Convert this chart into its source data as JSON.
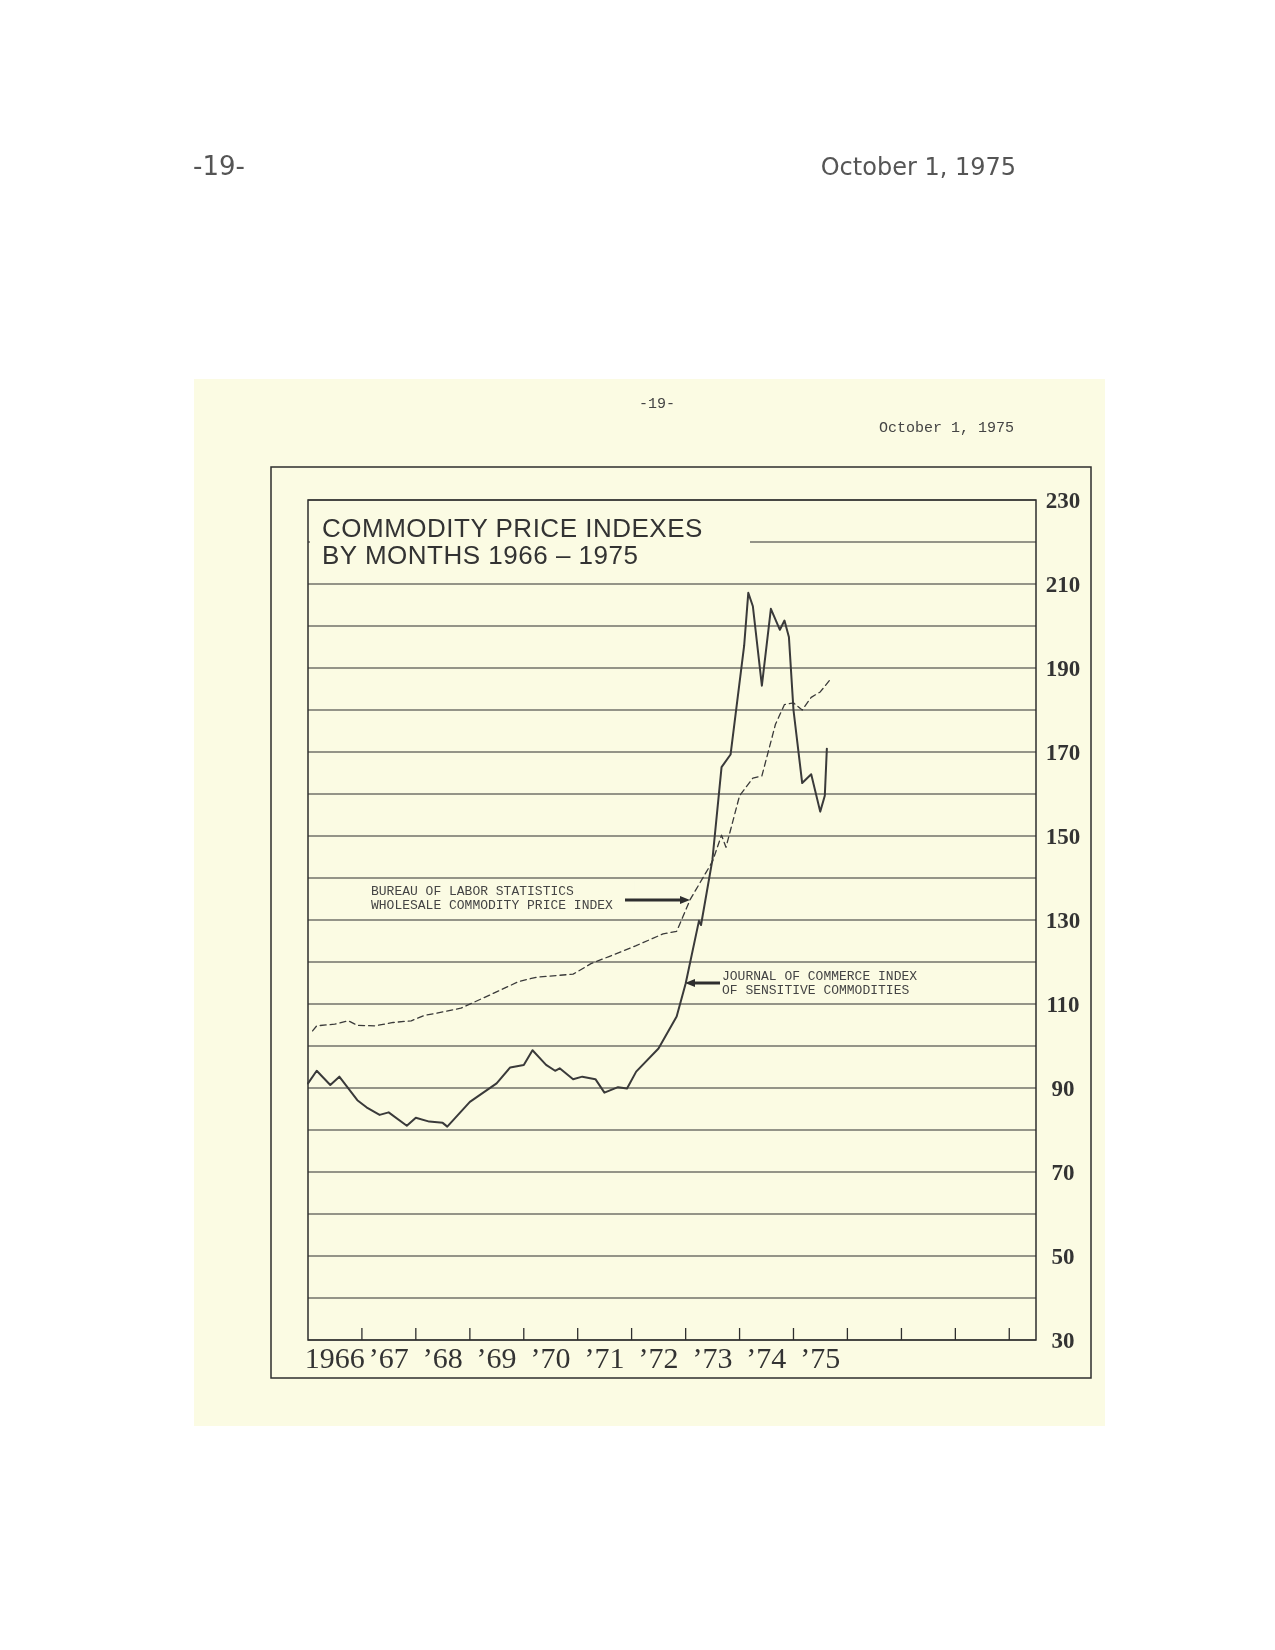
{
  "chart_data": {
    "type": "line",
    "title": "COMMODITY PRICE INDEXES\nBY MONTHS 1966 – 1975",
    "annotations": [
      "-19-",
      "October 1, 1975",
      "-19-",
      "October 1, 1975"
    ],
    "xlim": [
      "1966-01",
      "1979-07"
    ],
    "xticks": [
      {
        "value": "1966-07",
        "label": "1966"
      },
      {
        "value": "1967-07",
        "label": "’67"
      },
      {
        "value": "1968-07",
        "label": "’68"
      },
      {
        "value": "1969-07",
        "label": "’69"
      },
      {
        "value": "1970-07",
        "label": "’70"
      },
      {
        "value": "1971-07",
        "label": "’71"
      },
      {
        "value": "1972-07",
        "label": "’72"
      },
      {
        "value": "1973-07",
        "label": "’73"
      },
      {
        "value": "1974-07",
        "label": "’74"
      },
      {
        "value": "1975-07",
        "label": "’75"
      },
      {
        "value": "1967",
        "label": null
      },
      {
        "value": "1968",
        "label": null
      },
      {
        "value": "1969",
        "label": null
      },
      {
        "value": "1970",
        "label": null
      },
      {
        "value": "1971",
        "label": null
      },
      {
        "value": "1972",
        "label": null
      },
      {
        "value": "1973",
        "label": null
      },
      {
        "value": "1974",
        "label": null
      },
      {
        "value": "1975",
        "label": null
      },
      {
        "value": "1976",
        "label": null
      },
      {
        "value": "1977",
        "label": null
      },
      {
        "value": "1978",
        "label": null
      },
      {
        "value": "1979",
        "label": null
      }
    ],
    "ylim": [
      30,
      230
    ],
    "yticks": [
      30,
      {
        "value": 40,
        "label": null
      },
      50,
      {
        "value": 60,
        "label": null
      },
      70,
      {
        "value": 80,
        "label": null
      },
      90,
      {
        "value": 100,
        "label": null
      },
      110,
      {
        "value": 120,
        "label": null
      },
      130,
      {
        "value": 140,
        "label": null
      },
      150,
      {
        "value": 160,
        "label": null
      },
      170,
      {
        "value": 180,
        "label": null
      },
      190,
      {
        "value": 200,
        "label": null
      },
      210,
      {
        "value": 220,
        "label": null
      },
      230
    ],
    "grid": "y",
    "series": [
      {
        "name": "BUREAU OF LABOR STATISTICS\nWHOLESALE COMMODITY PRICE INDEX",
        "color": "#3a3a3a",
        "line_style": "dashed",
        "x": [
          "1966-02",
          "1966-03",
          "1966-07",
          "1966-10",
          "1966-12",
          "1967-04",
          "1967-08",
          "1967-12",
          "1968-03",
          "1968-07",
          "1968-11",
          "1969-06",
          "1969-12",
          "1970-04",
          "1970-12",
          "1971-04",
          "1971-08",
          "1972-02",
          "1972-08",
          "1972-11",
          "1973-02",
          "1973-07",
          "1973-09",
          "1973-10",
          "1974-01",
          "1974-04",
          "1974-06",
          "1974-09",
          "1974-11",
          "1975-01",
          "1975-03",
          "1975-05",
          "1975-07",
          "1975-09"
        ],
        "values": [
          103.6,
          104.8,
          105.2,
          106.0,
          104.9,
          104.8,
          105.6,
          106.0,
          107.3,
          108.1,
          109.0,
          112.4,
          115.4,
          116.4,
          117.1,
          119.6,
          121.3,
          123.9,
          126.7,
          127.3,
          134.9,
          143.9,
          150.2,
          147.3,
          159.6,
          163.8,
          164.3,
          176.6,
          181.3,
          181.7,
          180.0,
          183.0,
          184.3,
          187.0
        ]
      },
      {
        "name": "JOURNAL OF COMMERCE INDEX\nOF SENSITIVE COMMODITIES",
        "color": "#3a3a3a",
        "line_style": "solid",
        "x": [
          "1966-01",
          "1966-03",
          "1966-06",
          "1966-08",
          "1966-12",
          "1967-02",
          "1967-05",
          "1967-07",
          "1967-11",
          "1968-01",
          "1968-04",
          "1968-07",
          "1968-08",
          "1969-01",
          "1969-07",
          "1969-10",
          "1970-01",
          "1970-03",
          "1970-06",
          "1970-08",
          "1970-09",
          "1970-12",
          "1971-02",
          "1971-05",
          "1971-07",
          "1971-10",
          "1971-12",
          "1972-02",
          "1972-07",
          "1972-11",
          "1973-01",
          "1973-04",
          "1973-04-15",
          "1973-07",
          "1973-09",
          "1973-11",
          "1974-02",
          "1974-03",
          "1974-04",
          "1974-06",
          "1974-08",
          "1974-10",
          "1974-11",
          "1974-12",
          "1975-01",
          "1975-03",
          "1975-05",
          "1975-07",
          "1975-08",
          "1975-08-15"
        ],
        "values": [
          91.1,
          94.1,
          90.7,
          92.7,
          87.1,
          85.4,
          83.6,
          84.2,
          81.0,
          82.9,
          82.0,
          81.7,
          80.8,
          86.7,
          91.1,
          94.9,
          95.5,
          99.0,
          95.5,
          94.1,
          94.7,
          92.1,
          92.7,
          92.1,
          88.9,
          90.2,
          89.9,
          93.9,
          99.4,
          107.0,
          114.9,
          129.8,
          128.8,
          144.3,
          166.4,
          169.4,
          195.3,
          207.9,
          204.7,
          185.8,
          204.1,
          199.1,
          201.3,
          197.4,
          180.0,
          162.6,
          164.7,
          155.8,
          159.6,
          170.8
        ]
      }
    ]
  }
}
